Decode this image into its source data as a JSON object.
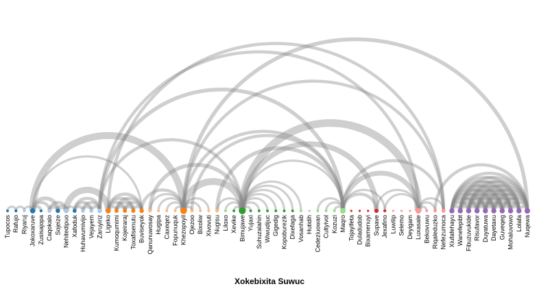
{
  "title": "Xokebixita Suwuc",
  "group_colors": {
    "blue": "#1f77b4",
    "orange": "#ff7f0e",
    "green": "#2ca02c",
    "red": "#d62728",
    "purple": "#9467bd",
    "light_blue": "#aec7e8",
    "light_orange": "#ffbb78",
    "light_green": "#98df8a",
    "light_red": "#ff9896"
  },
  "nodes": [
    {
      "name": "Tupocos",
      "group": "blue"
    },
    {
      "name": "Rafujo",
      "group": "blue"
    },
    {
      "name": "Riyaruj",
      "group": "light_blue"
    },
    {
      "name": "Jokoxaruve",
      "group": "blue"
    },
    {
      "name": "Zusisajopa",
      "group": "blue"
    },
    {
      "name": "Caqokalo",
      "group": "light_blue"
    },
    {
      "name": "Sojeize",
      "group": "blue"
    },
    {
      "name": "Nehitedipuo",
      "group": "light_blue"
    },
    {
      "name": "Xafoduk",
      "group": "blue"
    },
    {
      "name": "Huhavumivijo",
      "group": "light_blue"
    },
    {
      "name": "Vejayem",
      "group": "light_blue"
    },
    {
      "name": "Zaruyiriz",
      "group": "light_blue"
    },
    {
      "name": "Ligeko",
      "group": "orange"
    },
    {
      "name": "Kumoqumimi",
      "group": "orange"
    },
    {
      "name": "Kojeiraraj",
      "group": "orange"
    },
    {
      "name": "Toxafisenutu",
      "group": "orange"
    },
    {
      "name": "Buviseyok",
      "group": "orange"
    },
    {
      "name": "Qanunuwosay",
      "group": "light_orange"
    },
    {
      "name": "Hugipa",
      "group": "light_orange"
    },
    {
      "name": "Caxeqez",
      "group": "light_orange"
    },
    {
      "name": "Fopunuquk",
      "group": "light_orange"
    },
    {
      "name": "Khezopoyil",
      "group": "orange"
    },
    {
      "name": "Ojezoo",
      "group": "light_orange"
    },
    {
      "name": "Bixoliw",
      "group": "light_orange"
    },
    {
      "name": "Xivovuti",
      "group": "light_orange"
    },
    {
      "name": "Nugisu",
      "group": "light_orange"
    },
    {
      "name": "Liloxo",
      "group": "light_green"
    },
    {
      "name": "Xevike",
      "group": "green"
    },
    {
      "name": "Bimujawe",
      "group": "green"
    },
    {
      "name": "Yujaxi",
      "group": "green"
    },
    {
      "name": "Suhuzalahin",
      "group": "green"
    },
    {
      "name": "Wiwudijuc",
      "group": "green"
    },
    {
      "name": "Gigedig",
      "group": "green"
    },
    {
      "name": "Kopoburezik",
      "group": "green"
    },
    {
      "name": "Dixefaga",
      "group": "green"
    },
    {
      "name": "Vosanhab",
      "group": "light_green"
    },
    {
      "name": "Hutidih",
      "group": "light_green"
    },
    {
      "name": "Cedeziuowan",
      "group": "light_green"
    },
    {
      "name": "Cultyivol",
      "group": "light_green"
    },
    {
      "name": "Kozuzi",
      "group": "light_green"
    },
    {
      "name": "Maqro",
      "group": "light_green"
    },
    {
      "name": "Tojayifeta",
      "group": "red"
    },
    {
      "name": "Duladudob",
      "group": "red"
    },
    {
      "name": "Bixamenuyi",
      "group": "red"
    },
    {
      "name": "Supave",
      "group": "red"
    },
    {
      "name": "Jexafino",
      "group": "red"
    },
    {
      "name": "Luwilip",
      "group": "light_red"
    },
    {
      "name": "Selemo",
      "group": "light_red"
    },
    {
      "name": "Deyigam",
      "group": "light_red"
    },
    {
      "name": "Luxasale",
      "group": "light_red"
    },
    {
      "name": "Bekovuwu",
      "group": "light_red"
    },
    {
      "name": "Riqaleduzko",
      "group": "light_red"
    },
    {
      "name": "Nefezumoca",
      "group": "light_red"
    },
    {
      "name": "Xiufafehayu",
      "group": "purple"
    },
    {
      "name": "Wanefepibt",
      "group": "purple"
    },
    {
      "name": "Fibuzuvukide",
      "group": "purple"
    },
    {
      "name": "Risufavor",
      "group": "purple"
    },
    {
      "name": "Duyatuwa",
      "group": "purple"
    },
    {
      "name": "Dayetaxu",
      "group": "purple"
    },
    {
      "name": "Guveqeg",
      "group": "purple"
    },
    {
      "name": "Mohaluvowo",
      "group": "purple"
    },
    {
      "name": "Lolafa",
      "group": "purple"
    },
    {
      "name": "Nuqewa",
      "group": "purple"
    }
  ],
  "links": [
    {
      "source": "Tupocos",
      "target": "Rafujo",
      "value": 1
    },
    {
      "source": "Rafujo",
      "target": "Riyaruj",
      "value": 1
    },
    {
      "source": "Riyaruj",
      "target": "Jokoxaruve",
      "value": 1
    },
    {
      "source": "Jokoxaruve",
      "target": "Zusisajopa",
      "value": 2
    },
    {
      "source": "Jokoxaruve",
      "target": "Caqokalo",
      "value": 2
    },
    {
      "source": "Jokoxaruve",
      "target": "Sojeize",
      "value": 3
    },
    {
      "source": "Caqokalo",
      "target": "Sojeize",
      "value": 3
    },
    {
      "source": "Sojeize",
      "target": "Nehitedipuo",
      "value": 4
    },
    {
      "source": "Caqokalo",
      "target": "Nehitedipuo",
      "value": 2
    },
    {
      "source": "Nehitedipuo",
      "target": "Xafoduk",
      "value": 1
    },
    {
      "source": "Xafoduk",
      "target": "Huhavumivijo",
      "value": 2
    },
    {
      "source": "Xafoduk",
      "target": "Vejayem",
      "value": 2
    },
    {
      "source": "Xafoduk",
      "target": "Zaruyiriz",
      "value": 2
    },
    {
      "source": "Huhavumivijo",
      "target": "Vejayem",
      "value": 2
    },
    {
      "source": "Huhavumivijo",
      "target": "Zaruyiriz",
      "value": 2
    },
    {
      "source": "Vejayem",
      "target": "Zaruyiriz",
      "value": 2
    },
    {
      "source": "Nehitedipuo",
      "target": "Ligeko",
      "value": 8
    },
    {
      "source": "Jokoxaruve",
      "target": "Buviseyok",
      "value": 1
    },
    {
      "source": "Ligeko",
      "target": "Kumoqumimi",
      "value": 2
    },
    {
      "source": "Ligeko",
      "target": "Kojeiraraj",
      "value": 2
    },
    {
      "source": "Ligeko",
      "target": "Toxafisenutu",
      "value": 2
    },
    {
      "source": "Ligeko",
      "target": "Buviseyok",
      "value": 2
    },
    {
      "source": "Kumoqumimi",
      "target": "Kojeiraraj",
      "value": 2
    },
    {
      "source": "Kumoqumimi",
      "target": "Toxafisenutu",
      "value": 2
    },
    {
      "source": "Kumoqumimi",
      "target": "Buviseyok",
      "value": 2
    },
    {
      "source": "Kojeiraraj",
      "target": "Toxafisenutu",
      "value": 2
    },
    {
      "source": "Kojeiraraj",
      "target": "Buviseyok",
      "value": 2
    },
    {
      "source": "Toxafisenutu",
      "target": "Buviseyok",
      "value": 2
    },
    {
      "source": "Jokoxaruve",
      "target": "Khezopoyil",
      "value": 10
    },
    {
      "source": "Zaruyiriz",
      "target": "Maqro",
      "value": 3
    },
    {
      "source": "Zaruyiriz",
      "target": "Luxasale",
      "value": 2
    },
    {
      "source": "Ligeko",
      "target": "Nefezumoca",
      "value": 2
    },
    {
      "source": "Qanunuwosay",
      "target": "Khezopoyil",
      "value": 1
    },
    {
      "source": "Hugipa",
      "target": "Khezopoyil",
      "value": 1
    },
    {
      "source": "Caxeqez",
      "target": "Khezopoyil",
      "value": 1
    },
    {
      "source": "Fopunuquk",
      "target": "Khezopoyil",
      "value": 1
    },
    {
      "source": "Ojezoo",
      "target": "Khezopoyil",
      "value": 1
    },
    {
      "source": "Bixoliw",
      "target": "Khezopoyil",
      "value": 1
    },
    {
      "source": "Xivovuti",
      "target": "Khezopoyil",
      "value": 1
    },
    {
      "source": "Buviseyok",
      "target": "Khezopoyil",
      "value": 2
    },
    {
      "source": "Khezopoyil",
      "target": "Bimujawe",
      "value": 10
    },
    {
      "source": "Khezopoyil",
      "target": "Maqro",
      "value": 2
    },
    {
      "source": "Qanunuwosay",
      "target": "Bimujawe",
      "value": 3
    },
    {
      "source": "Zaruyiriz",
      "target": "Bimujawe",
      "value": 2
    },
    {
      "source": "Bimujawe",
      "target": "Luxasale",
      "value": 12
    },
    {
      "source": "Bimujawe",
      "target": "Supave",
      "value": 6
    },
    {
      "source": "Nugisu",
      "target": "Bimujawe",
      "value": 1
    },
    {
      "source": "Liloxo",
      "target": "Bimujawe",
      "value": 1
    },
    {
      "source": "Xevike",
      "target": "Bimujawe",
      "value": 1
    },
    {
      "source": "Bimujawe",
      "target": "Yujaxi",
      "value": 1
    },
    {
      "source": "Bimujawe",
      "target": "Suhuzalahin",
      "value": 1
    },
    {
      "source": "Bimujawe",
      "target": "Wiwudijuc",
      "value": 1
    },
    {
      "source": "Bimujawe",
      "target": "Gigedig",
      "value": 1
    },
    {
      "source": "Bimujawe",
      "target": "Kopoburezik",
      "value": 1
    },
    {
      "source": "Bimujawe",
      "target": "Dixefaga",
      "value": 1
    },
    {
      "source": "Bimujawe",
      "target": "Vosanhab",
      "value": 1
    },
    {
      "source": "Bimujawe",
      "target": "Maqro",
      "value": 1
    },
    {
      "source": "Cedeziuowan",
      "target": "Maqro",
      "value": 1
    },
    {
      "source": "Cultyivol",
      "target": "Maqro",
      "value": 1
    },
    {
      "source": "Kozuzi",
      "target": "Maqro",
      "value": 1
    },
    {
      "source": "Maqro",
      "target": "Luxasale",
      "value": 5
    },
    {
      "source": "Maqro",
      "target": "Nefezumoca",
      "value": 2
    },
    {
      "source": "Nugisu",
      "target": "Maqro",
      "value": 3
    },
    {
      "source": "Ojezoo",
      "target": "Maqro",
      "value": 2
    },
    {
      "source": "Maqro",
      "target": "Supave",
      "value": 2
    },
    {
      "source": "Maqro",
      "target": "Jexafino",
      "value": 1
    },
    {
      "source": "Supave",
      "target": "Luxasale",
      "value": 1
    },
    {
      "source": "Riqaleduzko",
      "target": "Nuqewa",
      "value": 2
    },
    {
      "source": "Jexafino",
      "target": "Luxasale",
      "value": 1
    },
    {
      "source": "Luxasale",
      "target": "Bekovuwu",
      "value": 1
    },
    {
      "source": "Luxasale",
      "target": "Riqaleduzko",
      "value": 1
    },
    {
      "source": "Luxasale",
      "target": "Nefezumoca",
      "value": 1
    },
    {
      "source": "Khezopoyil",
      "target": "Nuqewa",
      "value": 3
    },
    {
      "source": "Khezopoyil",
      "target": "Nefezumoca",
      "value": 2
    },
    {
      "source": "Xiufafehayu",
      "target": "Wanefepibt",
      "value": 2
    },
    {
      "source": "Xiufafehayu",
      "target": "Fibuzuvukide",
      "value": 2
    },
    {
      "source": "Xiufafehayu",
      "target": "Risufavor",
      "value": 2
    },
    {
      "source": "Xiufafehayu",
      "target": "Duyatuwa",
      "value": 2
    },
    {
      "source": "Xiufafehayu",
      "target": "Dayetaxu",
      "value": 2
    },
    {
      "source": "Xiufafehayu",
      "target": "Guveqeg",
      "value": 2
    },
    {
      "source": "Xiufafehayu",
      "target": "Mohaluvowo",
      "value": 2
    },
    {
      "source": "Xiufafehayu",
      "target": "Lolafa",
      "value": 2
    },
    {
      "source": "Xiufafehayu",
      "target": "Nuqewa",
      "value": 2
    },
    {
      "source": "Wanefepibt",
      "target": "Fibuzuvukide",
      "value": 2
    },
    {
      "source": "Wanefepibt",
      "target": "Risufavor",
      "value": 2
    },
    {
      "source": "Wanefepibt",
      "target": "Duyatuwa",
      "value": 2
    },
    {
      "source": "Wanefepibt",
      "target": "Dayetaxu",
      "value": 2
    },
    {
      "source": "Wanefepibt",
      "target": "Guveqeg",
      "value": 2
    },
    {
      "source": "Wanefepibt",
      "target": "Mohaluvowo",
      "value": 2
    },
    {
      "source": "Wanefepibt",
      "target": "Lolafa",
      "value": 2
    },
    {
      "source": "Wanefepibt",
      "target": "Nuqewa",
      "value": 2
    },
    {
      "source": "Fibuzuvukide",
      "target": "Risufavor",
      "value": 2
    },
    {
      "source": "Fibuzuvukide",
      "target": "Duyatuwa",
      "value": 2
    },
    {
      "source": "Fibuzuvukide",
      "target": "Dayetaxu",
      "value": 2
    },
    {
      "source": "Fibuzuvukide",
      "target": "Guveqeg",
      "value": 2
    },
    {
      "source": "Fibuzuvukide",
      "target": "Mohaluvowo",
      "value": 2
    },
    {
      "source": "Fibuzuvukide",
      "target": "Lolafa",
      "value": 2
    },
    {
      "source": "Fibuzuvukide",
      "target": "Nuqewa",
      "value": 2
    },
    {
      "source": "Risufavor",
      "target": "Duyatuwa",
      "value": 2
    },
    {
      "source": "Risufavor",
      "target": "Dayetaxu",
      "value": 2
    },
    {
      "source": "Risufavor",
      "target": "Guveqeg",
      "value": 2
    },
    {
      "source": "Risufavor",
      "target": "Mohaluvowo",
      "value": 2
    },
    {
      "source": "Risufavor",
      "target": "Lolafa",
      "value": 2
    },
    {
      "source": "Risufavor",
      "target": "Nuqewa",
      "value": 2
    },
    {
      "source": "Duyatuwa",
      "target": "Dayetaxu",
      "value": 2
    },
    {
      "source": "Duyatuwa",
      "target": "Guveqeg",
      "value": 2
    },
    {
      "source": "Duyatuwa",
      "target": "Mohaluvowo",
      "value": 2
    },
    {
      "source": "Duyatuwa",
      "target": "Lolafa",
      "value": 2
    },
    {
      "source": "Duyatuwa",
      "target": "Nuqewa",
      "value": 2
    },
    {
      "source": "Dayetaxu",
      "target": "Guveqeg",
      "value": 2
    },
    {
      "source": "Dayetaxu",
      "target": "Mohaluvowo",
      "value": 2
    },
    {
      "source": "Dayetaxu",
      "target": "Lolafa",
      "value": 2
    },
    {
      "source": "Dayetaxu",
      "target": "Nuqewa",
      "value": 2
    },
    {
      "source": "Guveqeg",
      "target": "Mohaluvowo",
      "value": 2
    },
    {
      "source": "Guveqeg",
      "target": "Lolafa",
      "value": 2
    },
    {
      "source": "Guveqeg",
      "target": "Nuqewa",
      "value": 2
    },
    {
      "source": "Mohaluvowo",
      "target": "Lolafa",
      "value": 2
    },
    {
      "source": "Mohaluvowo",
      "target": "Nuqewa",
      "value": 2
    },
    {
      "source": "Lolafa",
      "target": "Nuqewa",
      "value": 2
    }
  ]
}
